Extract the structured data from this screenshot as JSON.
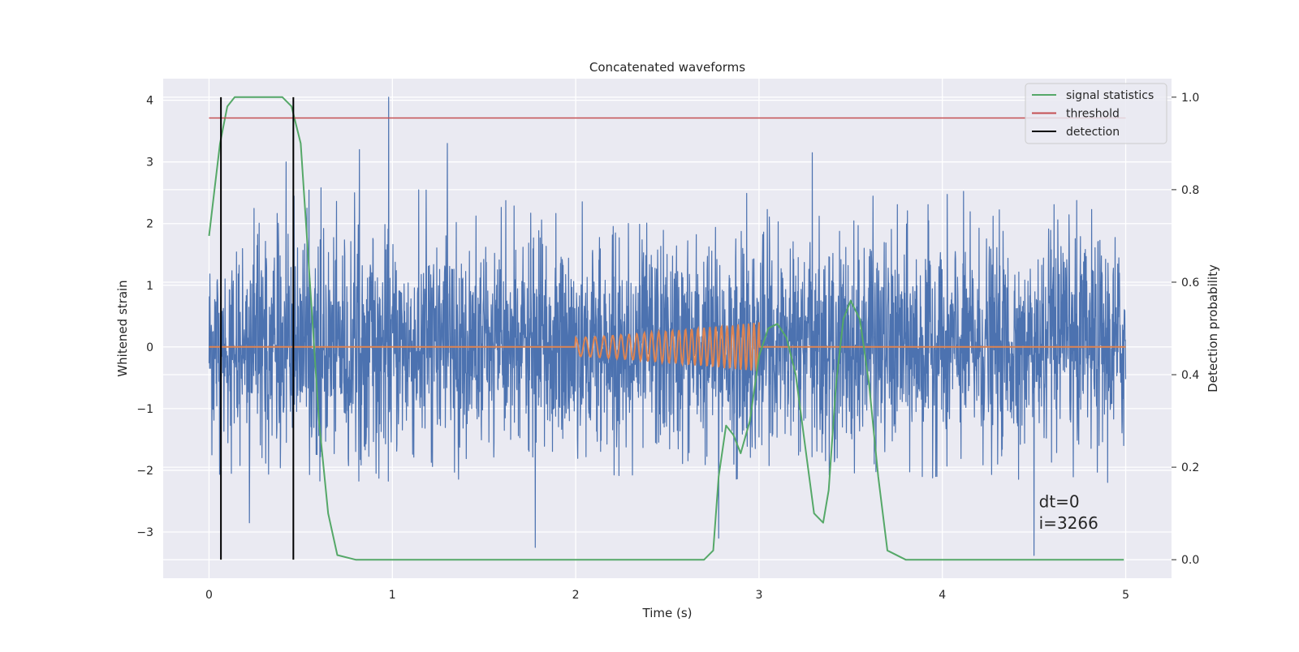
{
  "chart_data": {
    "type": "line",
    "title": "Concatenated waveforms",
    "xlabel": "Time (s)",
    "ylabel_left": "Whitened strain",
    "ylabel_right": "Detection probability",
    "xlim": [
      -0.25,
      5.25
    ],
    "ylim_left": [
      -3.75,
      4.35
    ],
    "ylim_right": [
      -0.04,
      1.04
    ],
    "x_ticks": [
      0,
      1,
      2,
      3,
      4,
      5
    ],
    "x_tick_labels": [
      "0",
      "1",
      "2",
      "3",
      "4",
      "5"
    ],
    "y_left_ticks": [
      -3,
      -2,
      -1,
      0,
      1,
      2,
      3,
      4
    ],
    "y_left_tick_labels": [
      "−3",
      "−2",
      "−1",
      "0",
      "1",
      "2",
      "3",
      "4"
    ],
    "y_right_ticks": [
      0.0,
      0.2,
      0.4,
      0.6,
      0.8,
      1.0
    ],
    "y_right_tick_labels": [
      "0.0",
      "0.2",
      "0.4",
      "0.6",
      "0.8",
      "1.0"
    ],
    "grid": true,
    "legend_position": "top-right",
    "legend": [
      {
        "label": "signal statistics",
        "color": "#55a868"
      },
      {
        "label": "threshold",
        "color": "#c44e52"
      },
      {
        "label": "detection",
        "color": "#000000"
      }
    ],
    "series": [
      {
        "kind": "noise",
        "axis": "left",
        "color": "#4c72b0",
        "x_range": [
          0,
          5
        ],
        "typical_amplitude": [
          -2.2,
          2.6
        ],
        "extremes": [
          {
            "x": 0.98,
            "y": 4.05
          },
          {
            "x": 1.3,
            "y": 3.3
          },
          {
            "x": 0.82,
            "y": 3.2
          },
          {
            "x": 0.42,
            "y": 3.0
          },
          {
            "x": 3.29,
            "y": 3.15
          },
          {
            "x": 1.78,
            "y": -3.25
          },
          {
            "x": 4.5,
            "y": -3.38
          },
          {
            "x": 0.22,
            "y": -2.85
          },
          {
            "x": 2.78,
            "y": -3.1
          }
        ]
      },
      {
        "kind": "chirp",
        "axis": "left",
        "color": "#dd8452",
        "baseline": 0,
        "x_range": [
          0,
          5
        ],
        "chirp_x_range": [
          2.0,
          3.0
        ],
        "chirp_amplitude": [
          0.15,
          0.4
        ]
      },
      {
        "kind": "statistic",
        "name": "signal statistics",
        "axis": "right",
        "color": "#55a868",
        "x": [
          0.0,
          0.03,
          0.06,
          0.1,
          0.14,
          0.2,
          0.3,
          0.4,
          0.45,
          0.5,
          0.55,
          0.6,
          0.65,
          0.7,
          0.8,
          1.0,
          1.5,
          2.0,
          2.5,
          2.7,
          2.75,
          2.78,
          2.82,
          2.86,
          2.9,
          2.95,
          3.0,
          3.05,
          3.1,
          3.15,
          3.2,
          3.25,
          3.3,
          3.35,
          3.38,
          3.42,
          3.46,
          3.5,
          3.55,
          3.6,
          3.65,
          3.7,
          3.8,
          4.0,
          4.5,
          4.99
        ],
        "y": [
          0.7,
          0.8,
          0.9,
          0.98,
          1.0,
          1.0,
          1.0,
          1.0,
          0.98,
          0.9,
          0.6,
          0.3,
          0.1,
          0.01,
          0.0,
          0.0,
          0.0,
          0.0,
          0.0,
          0.0,
          0.02,
          0.18,
          0.29,
          0.27,
          0.23,
          0.3,
          0.44,
          0.5,
          0.51,
          0.48,
          0.4,
          0.25,
          0.1,
          0.08,
          0.15,
          0.38,
          0.52,
          0.56,
          0.52,
          0.38,
          0.18,
          0.02,
          0.0,
          0.0,
          0.0,
          0.0
        ]
      },
      {
        "kind": "threshold",
        "name": "threshold",
        "axis": "right",
        "color": "#c44e52",
        "value": 0.955,
        "x_range": [
          0,
          5
        ]
      },
      {
        "kind": "detection",
        "name": "detection",
        "axis": "right",
        "color": "#000000",
        "x": [
          0.065,
          0.46
        ],
        "y_range": [
          0,
          1.0
        ]
      }
    ],
    "annotations": [
      {
        "text": "dt=0",
        "x": 4.5,
        "y": -2.6
      },
      {
        "text": "i=3266",
        "x": 4.5,
        "y": -2.95
      }
    ]
  }
}
